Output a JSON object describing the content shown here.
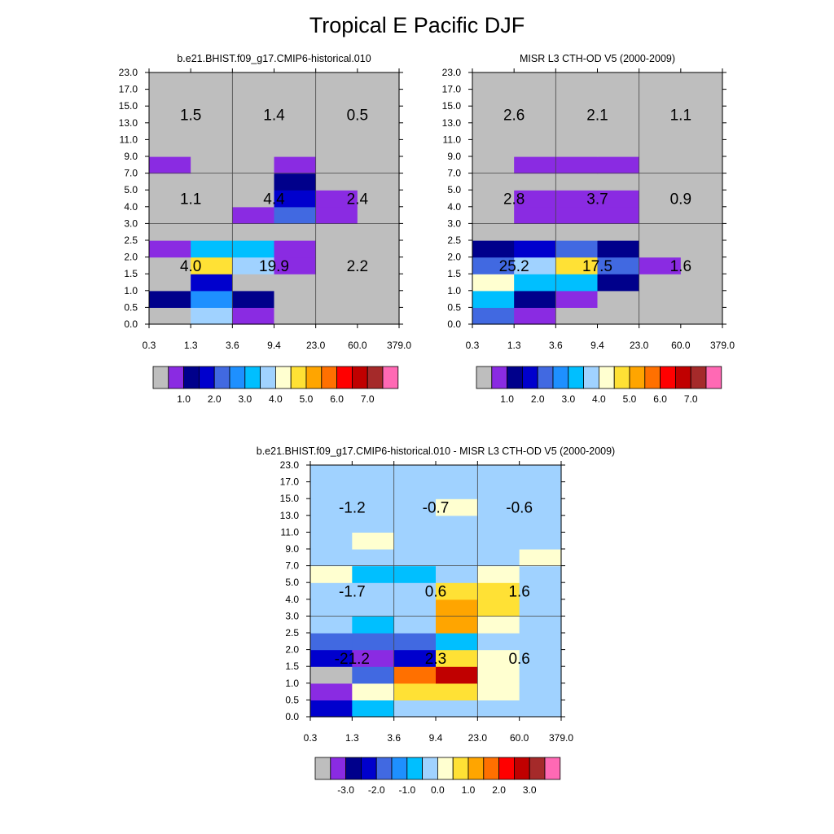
{
  "title": "Tropical E Pacific DJF",
  "chart_data": [
    {
      "type": "heatmap",
      "title": "b.e21.BHIST.f09_g17.CMIP6-historical.010",
      "xlabel": "",
      "ylabel": "",
      "x_ticks": [
        "0.3",
        "1.3",
        "3.6",
        "9.4",
        "23.0",
        "60.0",
        "379.0"
      ],
      "y_ticks": [
        "0.0",
        "0.5",
        "1.0",
        "1.5",
        "2.0",
        "2.5",
        "3.0",
        "4.0",
        "5.0",
        "7.0",
        "9.0",
        "11.0",
        "13.0",
        "15.0",
        "17.0",
        "23.0"
      ],
      "colorbar": {
        "colors": [
          "#BEBEBE",
          "#8A2BE2",
          "#00008B",
          "#0000CD",
          "#4169E1",
          "#1E90FF",
          "#00BFFF",
          "#A0D2FF",
          "#FFFFD0",
          "#FFE135",
          "#FFA500",
          "#FF7000",
          "#FF0000",
          "#C00000",
          "#A52A2A",
          "#FF69B4"
        ],
        "labels": [
          "1.0",
          "2.0",
          "3.0",
          "4.0",
          "5.0",
          "6.0",
          "7.0"
        ]
      },
      "cell_color_indices": [
        [
          0,
          7,
          1,
          0,
          0,
          0
        ],
        [
          2,
          5,
          2,
          0,
          0,
          0
        ],
        [
          0,
          3,
          0,
          0,
          0,
          0
        ],
        [
          0,
          9,
          7,
          1,
          0,
          0
        ],
        [
          1,
          6,
          6,
          1,
          0,
          0
        ],
        [
          0,
          0,
          0,
          0,
          0,
          0
        ],
        [
          0,
          0,
          1,
          4,
          1,
          0
        ],
        [
          0,
          0,
          0,
          3,
          1,
          0
        ],
        [
          0,
          0,
          0,
          2,
          0,
          0
        ],
        [
          1,
          0,
          0,
          1,
          0,
          0
        ],
        [
          0,
          0,
          0,
          0,
          0,
          0
        ],
        [
          0,
          0,
          0,
          0,
          0,
          0
        ],
        [
          0,
          0,
          0,
          0,
          0,
          0
        ],
        [
          0,
          0,
          0,
          0,
          0,
          0
        ],
        [
          0,
          0,
          0,
          0,
          0,
          0
        ]
      ],
      "region_values": [
        [
          "1.5",
          "1.4",
          "0.5"
        ],
        [
          "1.1",
          "4.4",
          "2.4"
        ],
        [
          "4.0",
          "19.9",
          "2.2"
        ]
      ]
    },
    {
      "type": "heatmap",
      "title": "MISR L3 CTH-OD V5 (2000-2009)",
      "xlabel": "",
      "ylabel": "",
      "x_ticks": [
        "0.3",
        "1.3",
        "3.6",
        "9.4",
        "23.0",
        "60.0",
        "379.0"
      ],
      "y_ticks": [
        "0.0",
        "0.5",
        "1.0",
        "1.5",
        "2.0",
        "2.5",
        "3.0",
        "4.0",
        "5.0",
        "7.0",
        "9.0",
        "11.0",
        "13.0",
        "15.0",
        "17.0",
        "23.0"
      ],
      "colorbar": {
        "colors": [
          "#BEBEBE",
          "#8A2BE2",
          "#00008B",
          "#0000CD",
          "#4169E1",
          "#1E90FF",
          "#00BFFF",
          "#A0D2FF",
          "#FFFFD0",
          "#FFE135",
          "#FFA500",
          "#FF7000",
          "#FF0000",
          "#C00000",
          "#A52A2A",
          "#FF69B4"
        ],
        "labels": [
          "1.0",
          "2.0",
          "3.0",
          "4.0",
          "5.0",
          "6.0",
          "7.0"
        ]
      },
      "cell_color_indices": [
        [
          4,
          1,
          0,
          0,
          0,
          0
        ],
        [
          6,
          2,
          1,
          0,
          0,
          0
        ],
        [
          8,
          6,
          6,
          2,
          0,
          0
        ],
        [
          4,
          7,
          9,
          4,
          1,
          0
        ],
        [
          2,
          3,
          4,
          2,
          0,
          0
        ],
        [
          0,
          0,
          0,
          0,
          0,
          0
        ],
        [
          0,
          1,
          1,
          1,
          0,
          0
        ],
        [
          0,
          1,
          1,
          1,
          0,
          0
        ],
        [
          0,
          0,
          0,
          0,
          0,
          0
        ],
        [
          0,
          1,
          1,
          1,
          0,
          0
        ],
        [
          0,
          0,
          0,
          0,
          0,
          0
        ],
        [
          0,
          0,
          0,
          0,
          0,
          0
        ],
        [
          0,
          0,
          0,
          0,
          0,
          0
        ],
        [
          0,
          0,
          0,
          0,
          0,
          0
        ],
        [
          0,
          0,
          0,
          0,
          0,
          0
        ]
      ],
      "region_values": [
        [
          "2.6",
          "2.1",
          "1.1"
        ],
        [
          "2.8",
          "3.7",
          "0.9"
        ],
        [
          "25.2",
          "17.5",
          "1.6"
        ]
      ]
    },
    {
      "type": "heatmap",
      "title": "b.e21.BHIST.f09_g17.CMIP6-historical.010 - MISR L3 CTH-OD V5 (2000-2009)",
      "xlabel": "",
      "ylabel": "",
      "x_ticks": [
        "0.3",
        "1.3",
        "3.6",
        "9.4",
        "23.0",
        "60.0",
        "379.0"
      ],
      "y_ticks": [
        "0.0",
        "0.5",
        "1.0",
        "1.5",
        "2.0",
        "2.5",
        "3.0",
        "4.0",
        "5.0",
        "7.0",
        "9.0",
        "11.0",
        "13.0",
        "15.0",
        "17.0",
        "23.0"
      ],
      "colorbar": {
        "colors": [
          "#BEBEBE",
          "#8A2BE2",
          "#00008B",
          "#0000CD",
          "#4169E1",
          "#1E90FF",
          "#00BFFF",
          "#A0D2FF",
          "#FFFFD0",
          "#FFE135",
          "#FFA500",
          "#FF7000",
          "#FF0000",
          "#C00000",
          "#A52A2A",
          "#FF69B4"
        ],
        "labels": [
          "-3.0",
          "-2.0",
          "-1.0",
          "0.0",
          "1.0",
          "2.0",
          "3.0"
        ]
      },
      "cell_color_indices": [
        [
          3,
          6,
          7,
          7,
          7,
          7
        ],
        [
          1,
          8,
          9,
          9,
          8,
          7
        ],
        [
          0,
          4,
          11,
          13,
          8,
          7
        ],
        [
          3,
          1,
          3,
          9,
          8,
          7
        ],
        [
          4,
          4,
          4,
          6,
          7,
          7
        ],
        [
          7,
          6,
          7,
          10,
          8,
          7
        ],
        [
          7,
          7,
          7,
          10,
          9,
          7
        ],
        [
          7,
          7,
          7,
          9,
          9,
          7
        ],
        [
          8,
          6,
          6,
          7,
          8,
          7
        ],
        [
          7,
          7,
          7,
          7,
          7,
          8
        ],
        [
          7,
          8,
          7,
          7,
          7,
          7
        ],
        [
          7,
          7,
          7,
          7,
          7,
          7
        ],
        [
          7,
          7,
          7,
          8,
          7,
          7
        ],
        [
          7,
          7,
          7,
          7,
          7,
          7
        ],
        [
          7,
          7,
          7,
          7,
          7,
          7
        ]
      ],
      "region_values": [
        [
          "-1.2",
          "-0.7",
          "-0.6"
        ],
        [
          "-1.7",
          "0.6",
          "1.6"
        ],
        [
          "-21.2",
          "2.3",
          "0.6"
        ]
      ]
    }
  ]
}
